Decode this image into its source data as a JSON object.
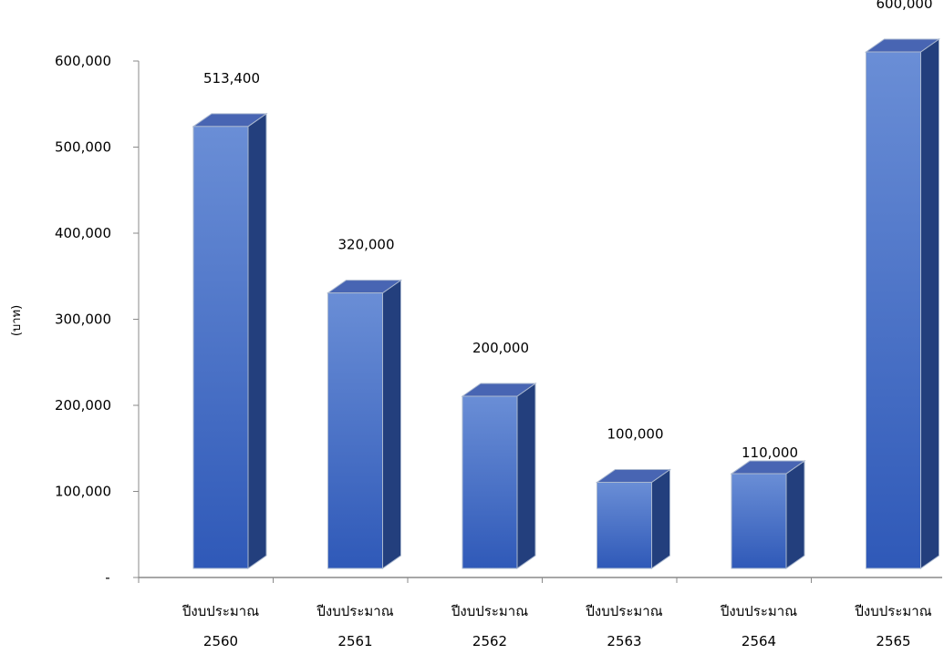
{
  "chart_data": {
    "type": "bar",
    "style": "3d-column",
    "categories": [
      [
        "ปีงบประมาณ",
        "2560"
      ],
      [
        "ปีงบประมาณ",
        "2561"
      ],
      [
        "ปีงบประมาณ",
        "2562"
      ],
      [
        "ปีงบประมาณ",
        "2563"
      ],
      [
        "ปีงบประมาณ",
        "2564"
      ],
      [
        "ปีงบประมาณ",
        "2565"
      ]
    ],
    "values": [
      513400,
      320000,
      200000,
      100000,
      110000,
      600000
    ],
    "data_labels": [
      "513,400",
      "320,000",
      "200,000",
      "100,000",
      "110,000",
      "600,000"
    ],
    "ylabel": "(บาท)",
    "ylim": [
      0,
      600000
    ],
    "yticks": [
      0,
      100000,
      200000,
      300000,
      400000,
      500000,
      600000
    ],
    "ytick_labels": [
      "-",
      "100,000",
      "200,000",
      "300,000",
      "400,000",
      "500,000",
      "600,000"
    ],
    "grid": false,
    "legend": "none",
    "colors": {
      "bar_front_top": "#6a8ed6",
      "bar_front_bottom": "#2f59b8",
      "bar_side": "#233f7d",
      "bar_top": "#4865b3",
      "bar_edge": "#aab8cf",
      "axis": "#8a8a8a"
    }
  }
}
